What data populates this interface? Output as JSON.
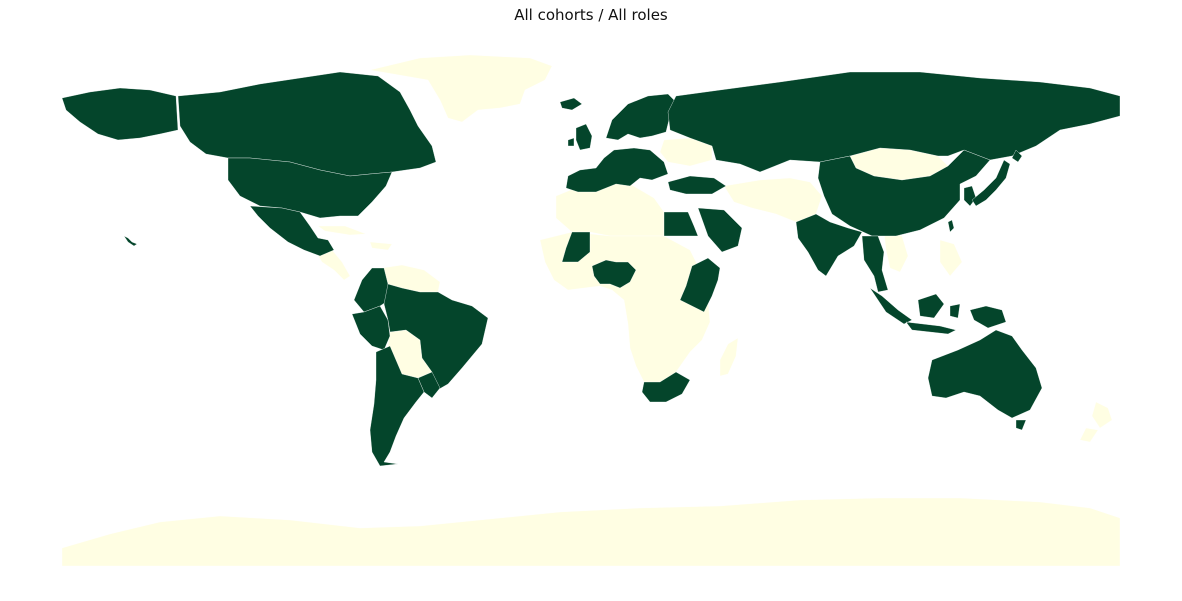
{
  "map": {
    "title": "All cohorts / All roles",
    "type": "choropleth",
    "projection": "equirectangular",
    "colors": {
      "highlighted": "#04452b",
      "not_highlighted": "#fffee3",
      "background": "#ffffff"
    },
    "highlighted_regions": [
      "Canada",
      "United States",
      "Mexico",
      "Guatemala",
      "Colombia",
      "Ecuador",
      "Peru",
      "Brazil",
      "Chile",
      "Argentina",
      "Uruguay",
      "Paraguay",
      "Iceland",
      "Ireland",
      "United Kingdom",
      "Norway",
      "Sweden",
      "Finland",
      "Portugal",
      "Spain",
      "France",
      "Belgium",
      "Netherlands",
      "Germany",
      "Switzerland",
      "Italy",
      "Austria",
      "Czechia",
      "Poland",
      "Hungary",
      "Croatia",
      "Greece",
      "Denmark",
      "Estonia",
      "Latvia",
      "Lithuania",
      "Russia",
      "Kazakhstan",
      "Turkey",
      "Egypt",
      "Saudi Arabia",
      "Mali",
      "Ghana",
      "Togo",
      "Nigeria",
      "Ethiopia",
      "Kenya",
      "Uganda",
      "Rwanda",
      "Tanzania",
      "South Africa",
      "India",
      "Nepal",
      "Bangladesh",
      "China",
      "Myanmar",
      "Thailand",
      "Malaysia",
      "Indonesia",
      "Japan",
      "South Korea",
      "Taiwan",
      "Australia",
      "Papua New Guinea"
    ],
    "other_regions": [
      "Greenland",
      "Cuba",
      "Caribbean",
      "Venezuela",
      "Guyana",
      "Suriname",
      "Bolivia",
      "Central America",
      "Morocco",
      "Algeria",
      "Libya",
      "Sub-Saharan Africa",
      "Madagascar",
      "Ukraine",
      "Belarus",
      "Mongolia",
      "Iran",
      "Afghanistan",
      "Pakistan",
      "Philippines",
      "Vietnam",
      "New Zealand",
      "Antarctica"
    ]
  }
}
